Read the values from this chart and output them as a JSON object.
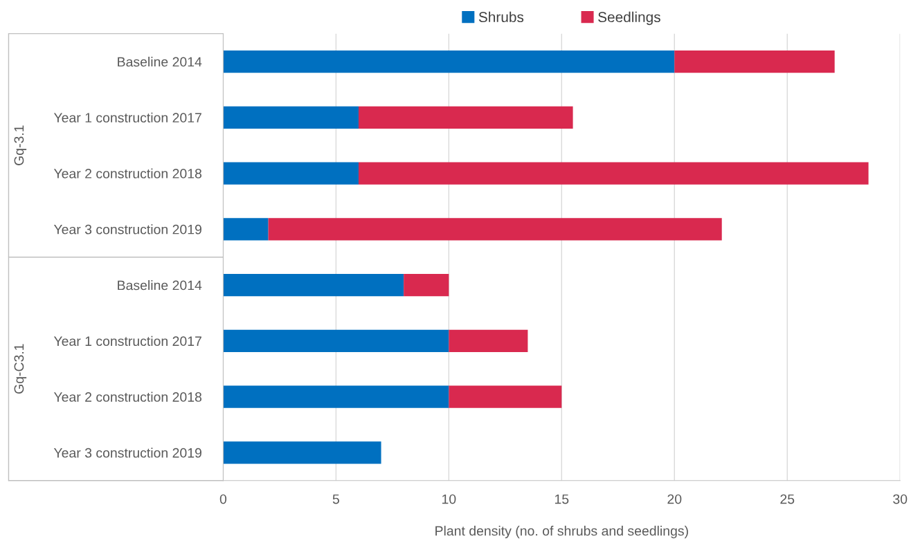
{
  "chart_data": {
    "type": "bar",
    "orientation": "horizontal",
    "stacked": true,
    "categories": [
      "Baseline 2014",
      "Year 1 construction 2017",
      "Year 2 construction 2018",
      "Year 3 construction 2019",
      "Baseline 2014",
      "Year 1 construction 2017",
      "Year 2 construction 2018",
      "Year 3 construction 2019"
    ],
    "series": [
      {
        "name": "Shrubs",
        "color": "#0070c0",
        "values": [
          20,
          6,
          6,
          2,
          8,
          10,
          10,
          7
        ]
      },
      {
        "name": "Seedlings",
        "color": "#d9294f",
        "values": [
          7.1,
          9.5,
          22.6,
          20.1,
          2,
          3.5,
          5,
          null
        ]
      }
    ],
    "xlabel": "Plant density (no. of shrubs and seedlings)",
    "annotations": [
      "Gq-3.1",
      "Gq-C3.1"
    ],
    "xlim": [
      0,
      30
    ],
    "xticks": [
      0,
      5,
      10,
      15,
      20,
      25,
      30
    ],
    "grid": "x",
    "legend": "top"
  }
}
